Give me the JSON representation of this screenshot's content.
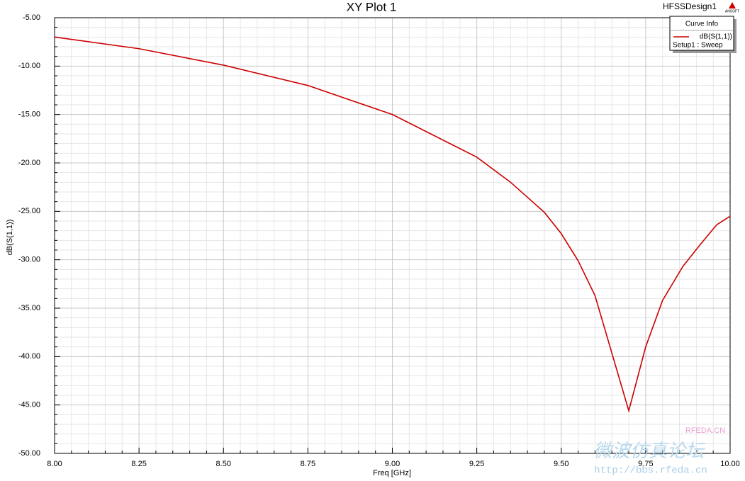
{
  "chart_data": {
    "type": "line",
    "title": "XY Plot 1",
    "design_name": "HFSSDesign1",
    "logo": "ANSOFT",
    "x_label": "Freq [GHz]",
    "y_label": "dB(S(1,1))",
    "legend_title": "Curve Info",
    "series": [
      {
        "name": "dB(S(1,1))",
        "setup": "Setup1 : Sweep",
        "color": "#cc0000",
        "x": [
          8.0,
          8.25,
          8.5,
          8.75,
          9.0,
          9.25,
          9.35,
          9.45,
          9.5,
          9.55,
          9.6,
          9.7,
          9.75,
          9.8,
          9.86,
          9.91,
          9.96,
          10.0
        ],
        "values": [
          -7.0,
          -8.2,
          -9.9,
          -12.0,
          -15.0,
          -19.4,
          -22.0,
          -25.1,
          -27.3,
          -30.1,
          -33.7,
          -45.6,
          -39.0,
          -34.2,
          -30.7,
          -28.5,
          -26.4,
          -25.5
        ]
      }
    ],
    "xlim": [
      8.0,
      10.0
    ],
    "xticks": [
      {
        "value": 8.0,
        "label": "8.00"
      },
      {
        "value": 8.25,
        "label": "8.25"
      },
      {
        "value": 8.5,
        "label": "8.50"
      },
      {
        "value": 8.75,
        "label": "8.75"
      },
      {
        "value": 9.0,
        "label": "9.00"
      },
      {
        "value": 9.25,
        "label": "9.25"
      },
      {
        "value": 9.5,
        "label": "9.50"
      },
      {
        "value": 9.75,
        "label": "9.75"
      },
      {
        "value": 10.0,
        "label": "10.00"
      }
    ],
    "ylim": [
      -50,
      -5
    ],
    "yticks": [
      {
        "value": -5,
        "label": "-5.00"
      },
      {
        "value": -10,
        "label": "-10.00"
      },
      {
        "value": -15,
        "label": "-15.00"
      },
      {
        "value": -20,
        "label": "-20.00"
      },
      {
        "value": -25,
        "label": "-25.00"
      },
      {
        "value": -30,
        "label": "-30.00"
      },
      {
        "value": -35,
        "label": "-35.00"
      },
      {
        "value": -40,
        "label": "-40.00"
      },
      {
        "value": -45,
        "label": "-45.00"
      },
      {
        "value": -50,
        "label": "-50.00"
      }
    ],
    "grid": true,
    "watermark": [
      "RFEDA.CN",
      "微波仿真论坛",
      "http://bbs.rfeda.cn"
    ]
  }
}
